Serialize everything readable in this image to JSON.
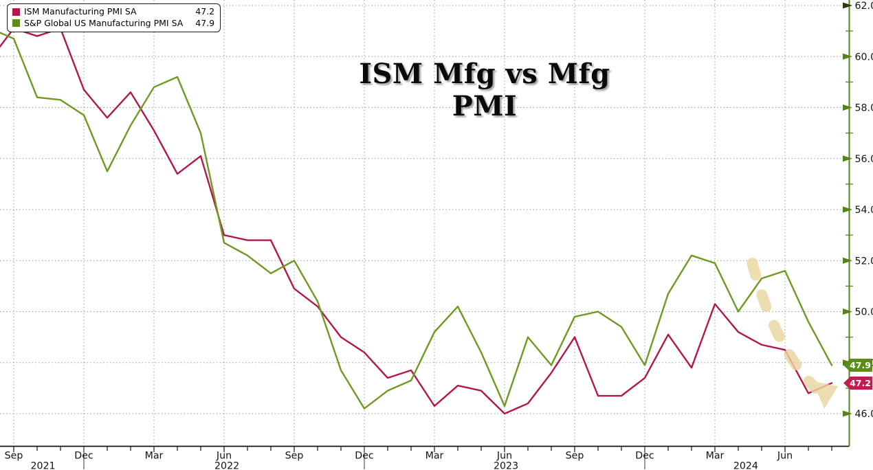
{
  "title": "ISM Mfg vs Mfg PMI",
  "legend": {
    "items": [
      {
        "label": "ISM Manufacturing PMI SA",
        "value": "47.2",
        "color": "#b3174a"
      },
      {
        "label": "S&P Global US Manufacturing PMI SA",
        "value": "47.9",
        "color": "#5f8c1a"
      }
    ]
  },
  "badges": [
    {
      "text": "47.9",
      "value": 47.9,
      "color": "#5a8b1e"
    },
    {
      "text": "47.2",
      "value": 47.2,
      "color": "#bf1e4e"
    }
  ],
  "colors": {
    "red_line": "#b3174a",
    "green_line": "#6d9a20",
    "axis_green": "#55821b",
    "axis_black": "#111111",
    "grid": "#8a8a8a",
    "arrow": "#e9d5a0",
    "tick_text": "#111111"
  },
  "chart_data": {
    "type": "line",
    "x_months": [
      "Aug 2021",
      "Sep 2021",
      "Oct 2021",
      "Nov 2021",
      "Dec 2021",
      "Jan 2022",
      "Feb 2022",
      "Mar 2022",
      "Apr 2022",
      "May 2022",
      "Jun 2022",
      "Jul 2022",
      "Aug 2022",
      "Sep 2022",
      "Oct 2022",
      "Nov 2022",
      "Dec 2022",
      "Jan 2023",
      "Feb 2023",
      "Mar 2023",
      "Apr 2023",
      "May 2023",
      "Jun 2023",
      "Jul 2023",
      "Aug 2023",
      "Sep 2023",
      "Oct 2023",
      "Nov 2023",
      "Dec 2023",
      "Jan 2024",
      "Feb 2024",
      "Mar 2024",
      "Apr 2024",
      "May 2024",
      "Jun 2024",
      "Jul 2024",
      "Aug 2024"
    ],
    "series": [
      {
        "name": "ISM Manufacturing PMI SA",
        "color": "#b3174a",
        "values": [
          59.9,
          61.1,
          60.8,
          61.1,
          58.7,
          57.6,
          58.6,
          57.1,
          55.4,
          56.1,
          53.0,
          52.8,
          52.8,
          50.9,
          50.2,
          49.0,
          48.4,
          47.4,
          47.7,
          46.3,
          47.1,
          46.9,
          46.0,
          46.4,
          47.6,
          49.0,
          46.7,
          46.7,
          47.4,
          49.1,
          47.8,
          50.3,
          49.2,
          48.7,
          48.5,
          46.8,
          47.2
        ]
      },
      {
        "name": "S&P Global US Manufacturing PMI SA",
        "color": "#6d9a20",
        "values": [
          61.1,
          60.7,
          58.4,
          58.3,
          57.7,
          55.5,
          57.3,
          58.8,
          59.2,
          57.0,
          52.7,
          52.2,
          51.5,
          52.0,
          50.4,
          47.7,
          46.2,
          46.9,
          47.3,
          49.2,
          50.2,
          48.4,
          46.3,
          49.0,
          47.9,
          49.8,
          50.0,
          49.4,
          47.9,
          50.7,
          52.2,
          51.9,
          50.0,
          51.3,
          51.6,
          49.6,
          47.9
        ]
      }
    ],
    "ylim": [
      44.8,
      62.2
    ],
    "yticks": [
      46,
      48,
      50,
      52,
      54,
      56,
      58,
      60,
      62
    ],
    "ytick_labels": [
      "46.0",
      "48.0",
      "50.0",
      "52.0",
      "54.0",
      "56.0",
      "58.0",
      "60.0",
      "62.0"
    ],
    "minor_yticks": [
      47,
      49,
      51,
      53,
      55,
      57,
      59,
      61
    ],
    "xticks": [
      {
        "index": 1,
        "label": "Sep"
      },
      {
        "index": 4,
        "label": "Dec"
      },
      {
        "index": 7,
        "label": "Mar"
      },
      {
        "index": 10,
        "label": "Jun"
      },
      {
        "index": 13,
        "label": "Sep"
      },
      {
        "index": 16,
        "label": "Dec"
      },
      {
        "index": 19,
        "label": "Mar"
      },
      {
        "index": 22,
        "label": "Jun"
      },
      {
        "index": 25,
        "label": "Sep"
      },
      {
        "index": 28,
        "label": "Dec"
      },
      {
        "index": 31,
        "label": "Mar"
      },
      {
        "index": 34,
        "label": "Jun"
      }
    ],
    "years": [
      {
        "label": "2021",
        "center_index": 2.25
      },
      {
        "label": "2022",
        "center_index": 10.12
      },
      {
        "label": "2023",
        "center_index": 22.06
      },
      {
        "label": "2024",
        "center_index": 32.32
      }
    ],
    "year_separator_indices": [
      4,
      16,
      28
    ],
    "grid": true,
    "legend_position": "top-left",
    "annotation": {
      "type": "dashed-arrow",
      "color": "#e9d5a0",
      "start_index": 32.6,
      "start_value": 51.9,
      "end_index": 35.3,
      "end_value": 47.0
    }
  }
}
